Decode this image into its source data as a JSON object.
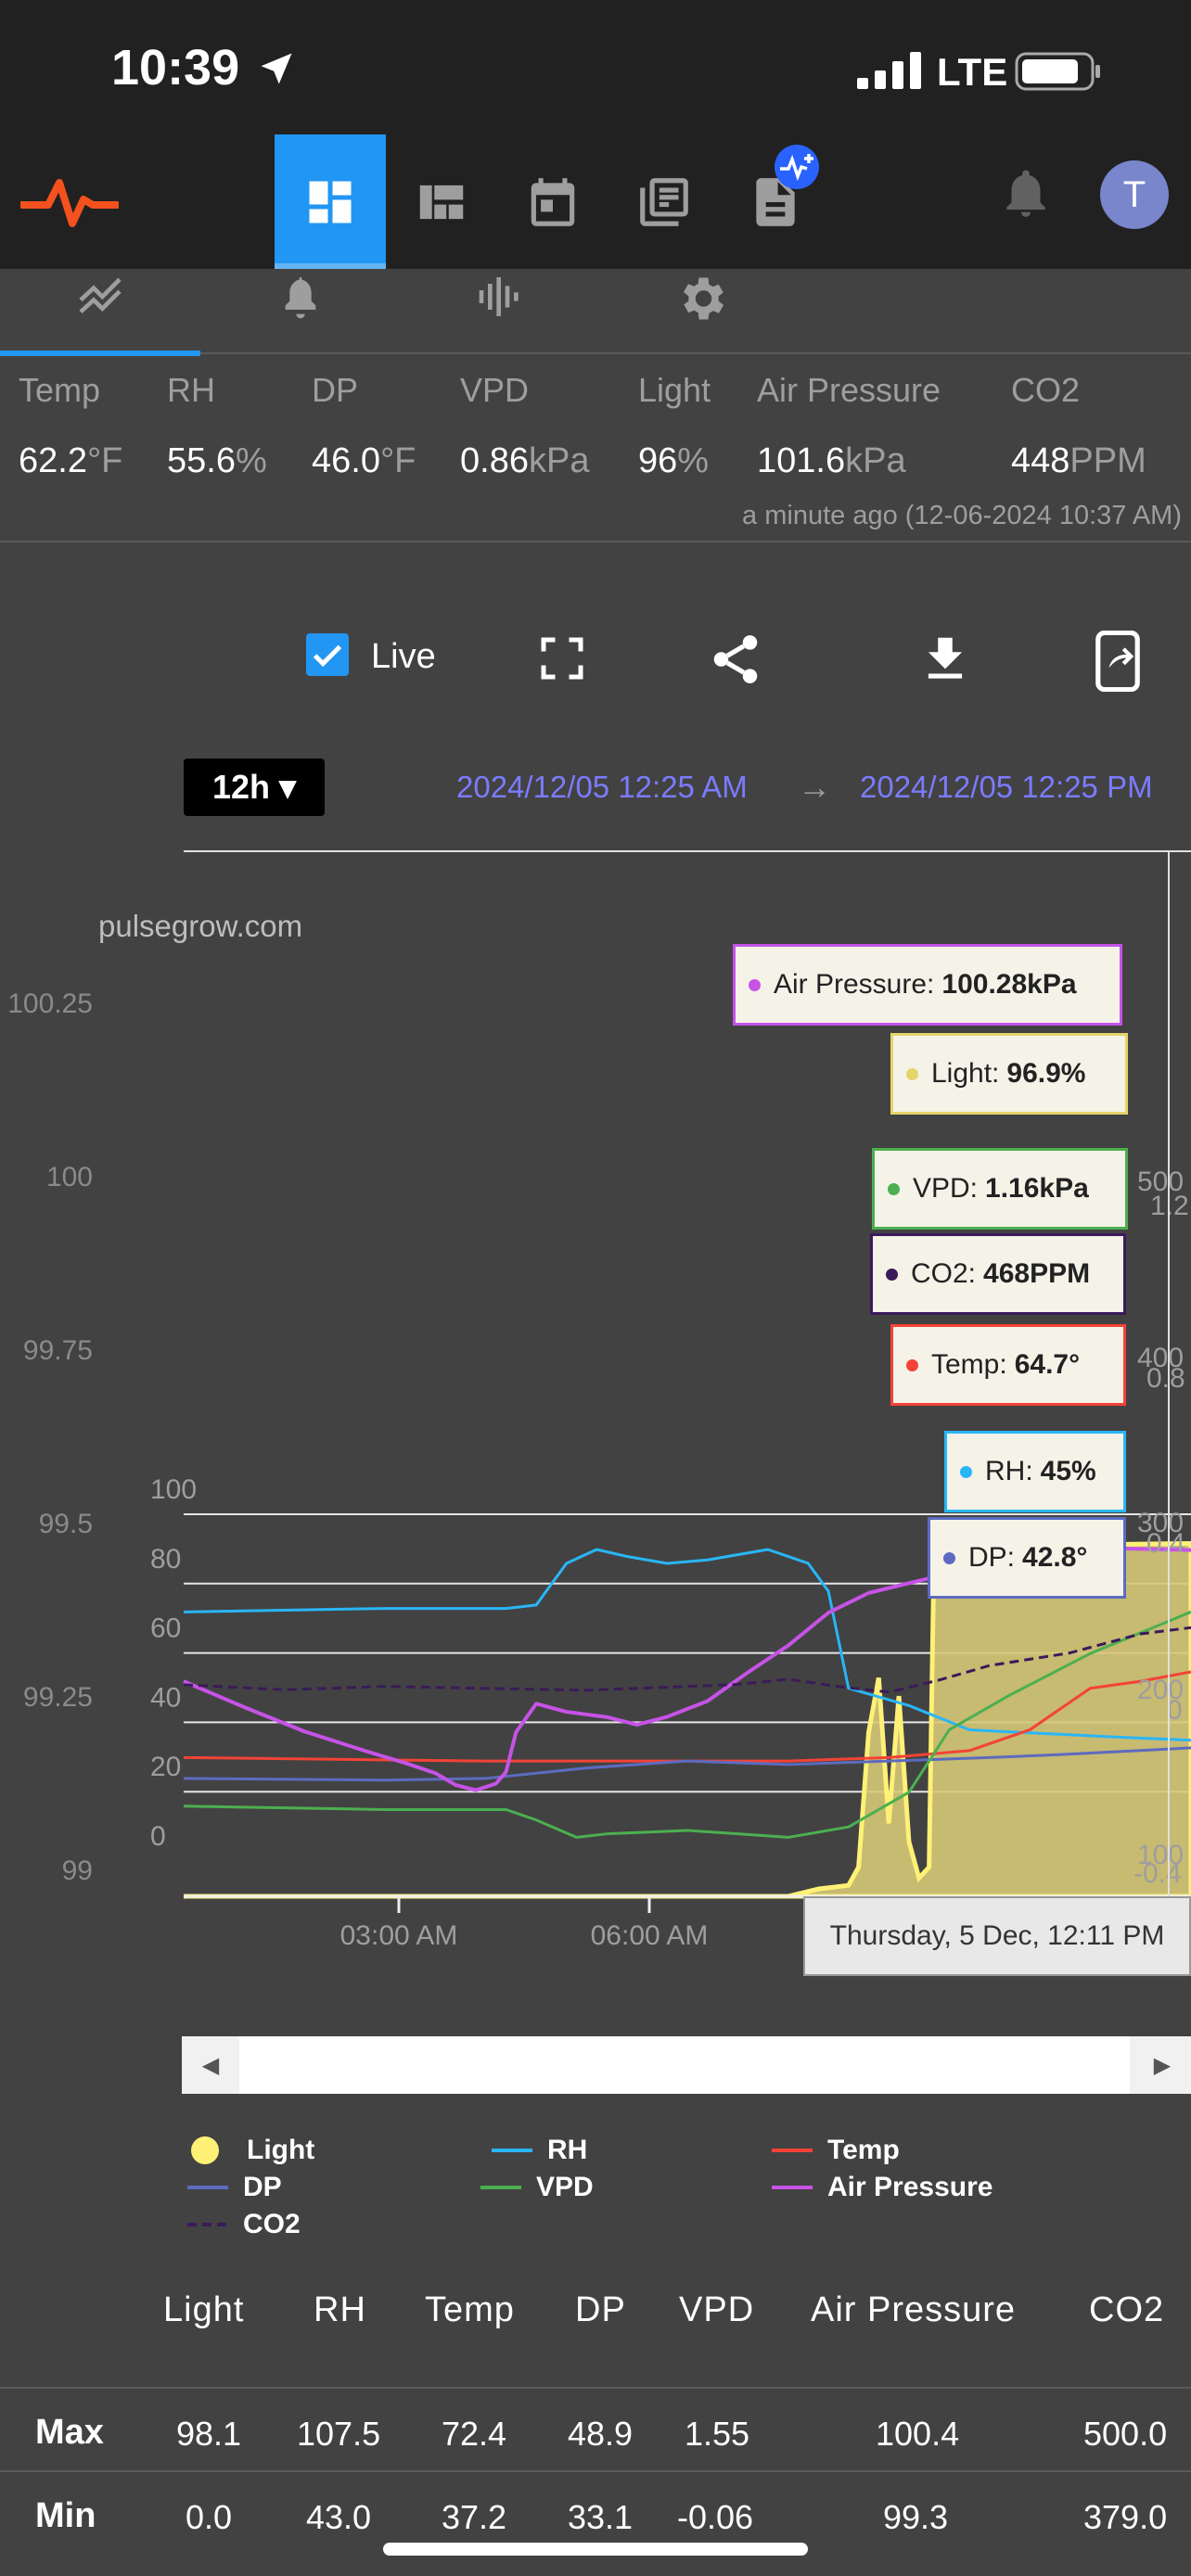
{
  "status_bar": {
    "time": "10:39",
    "network": "LTE"
  },
  "app_bar": {
    "avatar_initial": "T"
  },
  "sensors": [
    {
      "label": "Temp",
      "value": "62.2",
      "unit": "°F"
    },
    {
      "label": "RH",
      "value": "55.6",
      "unit": "%"
    },
    {
      "label": "DP",
      "value": "46.0",
      "unit": "°F"
    },
    {
      "label": "VPD",
      "value": "0.86",
      "unit": "kPa"
    },
    {
      "label": "Light",
      "value": "96",
      "unit": "%"
    },
    {
      "label": "Air Pressure",
      "value": "101.6",
      "unit": "kPa"
    },
    {
      "label": "CO2",
      "value": "448",
      "unit": "PPM"
    }
  ],
  "last_updated": "a minute ago (12-06-2024 10:37 AM)",
  "toolbar": {
    "live_label": "Live",
    "live_checked": true
  },
  "range": {
    "selected": "12h ▾",
    "from": "2024/12/05 12:25 AM",
    "arrow": "→",
    "to": "2024/12/05 12:25 PM"
  },
  "chart_data": {
    "type": "line",
    "watermark": "pulsegrow.com",
    "x_ticks": [
      "03:00 AM",
      "06:00 AM"
    ],
    "x_range": [
      "2024/12/05 12:25 AM",
      "2024/12/05 12:25 PM"
    ],
    "left_axis_primary": {
      "ticks": [
        0,
        20,
        40,
        60,
        80,
        100
      ]
    },
    "left_axis_pressure": {
      "ticks": [
        "99",
        "99.25",
        "99.5",
        "99.75",
        "100",
        "100.25"
      ]
    },
    "right_axis_partial": [
      "100",
      "200",
      "300",
      "400",
      "500",
      "0",
      "-0.4",
      "0.4",
      "0.8",
      "1.2"
    ],
    "grid": true,
    "series": [
      {
        "name": "Light",
        "color": "#fff176",
        "points": [
          [
            0,
            0
          ],
          [
            0.6,
            0
          ],
          [
            0.63,
            2
          ],
          [
            0.66,
            3
          ],
          [
            0.67,
            8
          ],
          [
            0.68,
            45
          ],
          [
            0.69,
            60
          ],
          [
            0.7,
            20
          ],
          [
            0.71,
            55
          ],
          [
            0.72,
            15
          ],
          [
            0.73,
            5
          ],
          [
            0.74,
            8
          ],
          [
            0.745,
            96
          ],
          [
            1,
            96.9
          ]
        ]
      },
      {
        "name": "RH",
        "color": "#29b6f6",
        "points": [
          [
            0,
            82
          ],
          [
            0.2,
            83
          ],
          [
            0.32,
            83
          ],
          [
            0.35,
            84
          ],
          [
            0.38,
            96
          ],
          [
            0.41,
            100
          ],
          [
            0.44,
            98
          ],
          [
            0.48,
            96
          ],
          [
            0.52,
            97
          ],
          [
            0.58,
            100
          ],
          [
            0.62,
            96
          ],
          [
            0.64,
            88
          ],
          [
            0.66,
            60
          ],
          [
            0.72,
            55
          ],
          [
            0.78,
            48
          ],
          [
            0.85,
            47
          ],
          [
            0.92,
            46
          ],
          [
            1,
            45
          ]
        ]
      },
      {
        "name": "Temp",
        "color": "#f44336",
        "points": [
          [
            0,
            40
          ],
          [
            0.3,
            39
          ],
          [
            0.5,
            39
          ],
          [
            0.6,
            39
          ],
          [
            0.7,
            40
          ],
          [
            0.78,
            42
          ],
          [
            0.84,
            48
          ],
          [
            0.9,
            60
          ],
          [
            0.95,
            62
          ],
          [
            1,
            64.7
          ]
        ]
      },
      {
        "name": "DP",
        "color": "#5c6bc0",
        "points": [
          [
            0,
            34
          ],
          [
            0.2,
            33.5
          ],
          [
            0.3,
            34
          ],
          [
            0.4,
            37
          ],
          [
            0.5,
            39
          ],
          [
            0.6,
            38
          ],
          [
            0.7,
            39
          ],
          [
            0.8,
            40
          ],
          [
            0.88,
            41
          ],
          [
            1,
            42.8
          ]
        ]
      },
      {
        "name": "VPD",
        "color": "#4caf50",
        "points": [
          [
            0,
            26
          ],
          [
            0.2,
            25
          ],
          [
            0.32,
            25
          ],
          [
            0.35,
            22
          ],
          [
            0.39,
            17
          ],
          [
            0.42,
            18
          ],
          [
            0.5,
            19
          ],
          [
            0.55,
            18
          ],
          [
            0.6,
            17
          ],
          [
            0.66,
            20
          ],
          [
            0.72,
            30
          ],
          [
            0.76,
            48
          ],
          [
            0.82,
            58
          ],
          [
            0.9,
            70
          ],
          [
            1,
            82
          ]
        ]
      },
      {
        "name": "Air Pressure",
        "color": "#c653e6",
        "points": [
          [
            0,
            62
          ],
          [
            0.06,
            55
          ],
          [
            0.12,
            48
          ],
          [
            0.18,
            42
          ],
          [
            0.22,
            38
          ],
          [
            0.25,
            35
          ],
          [
            0.27,
            32
          ],
          [
            0.29,
            31
          ],
          [
            0.31,
            33
          ],
          [
            0.32,
            36
          ],
          [
            0.33,
            47
          ],
          [
            0.35,
            55
          ],
          [
            0.38,
            53
          ],
          [
            0.42,
            52
          ],
          [
            0.45,
            50
          ],
          [
            0.48,
            52
          ],
          [
            0.52,
            56
          ],
          [
            0.56,
            64
          ],
          [
            0.6,
            72
          ],
          [
            0.64,
            82
          ],
          [
            0.68,
            88
          ],
          [
            0.74,
            92
          ],
          [
            0.8,
            96
          ],
          [
            0.86,
            98
          ],
          [
            0.92,
            100
          ],
          [
            1,
            100
          ]
        ]
      },
      {
        "name": "CO2",
        "color": "#3b1a5a",
        "dashed": true,
        "points": [
          [
            0,
            61
          ],
          [
            0.1,
            60
          ],
          [
            0.2,
            61
          ],
          [
            0.3,
            60
          ],
          [
            0.4,
            59
          ],
          [
            0.5,
            60
          ],
          [
            0.55,
            61
          ],
          [
            0.6,
            63
          ],
          [
            0.65,
            61
          ],
          [
            0.7,
            59
          ],
          [
            0.75,
            62
          ],
          [
            0.8,
            66
          ],
          [
            0.88,
            70
          ],
          [
            0.95,
            76
          ],
          [
            1,
            78
          ]
        ]
      }
    ],
    "tooltips": [
      {
        "name": "Air Pressure",
        "value": "100.28kPa",
        "color": "#c653e6"
      },
      {
        "name": "Light",
        "value": "96.9%",
        "color": "#e6d36a"
      },
      {
        "name": "VPD",
        "value": "1.16kPa",
        "color": "#4caf50"
      },
      {
        "name": "CO2",
        "value": "468PPM",
        "color": "#3b1a5a"
      },
      {
        "name": "Temp",
        "value": "64.7°",
        "color": "#f44336"
      },
      {
        "name": "RH",
        "value": "45%",
        "color": "#29b6f6"
      },
      {
        "name": "DP",
        "value": "42.8°",
        "color": "#5c6bc0"
      }
    ],
    "crosshair_time": "Thursday, 5 Dec, 12:11 PM"
  },
  "legend": [
    {
      "name": "Light",
      "color": "#fff176",
      "style": "dot"
    },
    {
      "name": "RH",
      "color": "#29b6f6",
      "style": "line"
    },
    {
      "name": "Temp",
      "color": "#f44336",
      "style": "line"
    },
    {
      "name": "DP",
      "color": "#5c6bc0",
      "style": "line"
    },
    {
      "name": "VPD",
      "color": "#4caf50",
      "style": "line"
    },
    {
      "name": "Air Pressure",
      "color": "#c653e6",
      "style": "line"
    },
    {
      "name": "CO2",
      "color": "#3b1a5a",
      "style": "dashed"
    }
  ],
  "stats": {
    "columns": [
      "Light",
      "RH",
      "Temp",
      "DP",
      "VPD",
      "Air Pressure",
      "CO2"
    ],
    "rows": [
      {
        "label": "Max",
        "values": [
          "98.1",
          "107.5",
          "72.4",
          "48.9",
          "1.55",
          "100.4",
          "500.0"
        ]
      },
      {
        "label": "Min",
        "values": [
          "0.0",
          "43.0",
          "37.2",
          "33.1",
          "-0.06",
          "99.3",
          "379.0"
        ]
      }
    ]
  }
}
